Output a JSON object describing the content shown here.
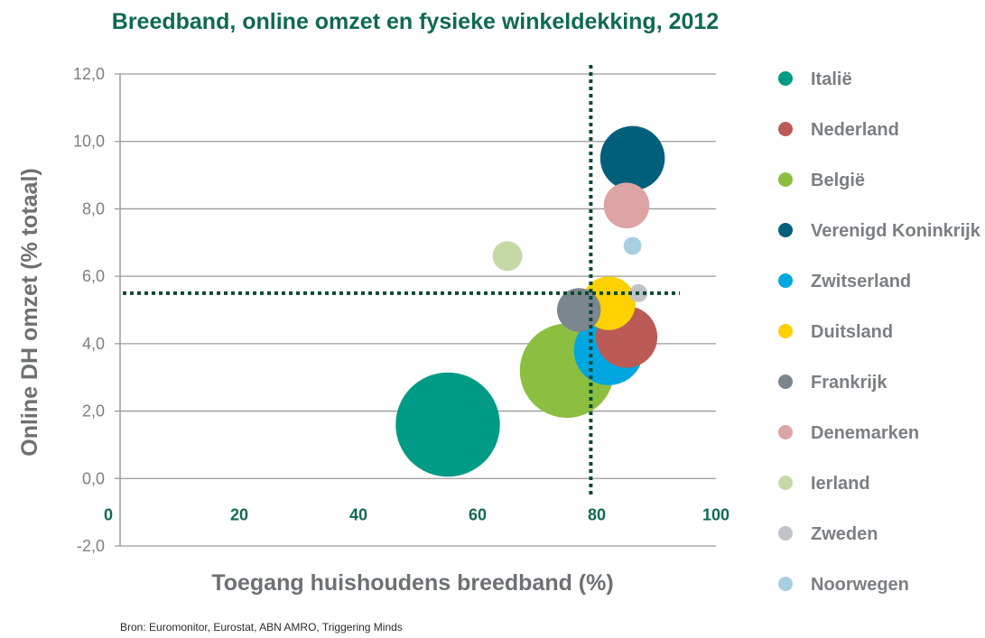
{
  "chart_data": {
    "type": "bubble",
    "title": "Breedband, online omzet en fysieke winkeldekking, 2012",
    "xlabel": "Toegang huishoudens breedband (%)",
    "ylabel": "Online DH omzet (% totaal)",
    "xlim": [
      0,
      100
    ],
    "ylim": [
      -2,
      12
    ],
    "x_ticks": [
      "0",
      "20",
      "40",
      "60",
      "80",
      "100"
    ],
    "y_ticks": [
      "-2,0",
      "0,0",
      "2,0",
      "4,0",
      "6,0",
      "8,0",
      "10,0",
      "12,0"
    ],
    "grid": "horizontal",
    "reference_lines": {
      "x": 79,
      "y": 5.5
    },
    "legend_position": "right",
    "source": "Bron: Euromonitor, Eurostat, ABN AMRO, Triggering Minds",
    "series": [
      {
        "name": "Italië",
        "x": 55,
        "y": 1.6,
        "size": 10.5,
        "color": "#009b84"
      },
      {
        "name": "Nederland",
        "x": 85,
        "y": 4.2,
        "size": 6.2,
        "color": "#bc5a55"
      },
      {
        "name": "België",
        "x": 75,
        "y": 3.2,
        "size": 9.5,
        "color": "#8cbf3f"
      },
      {
        "name": "Verenigd Koninkrijk",
        "x": 86,
        "y": 9.5,
        "size": 6.5,
        "color": "#005f7a"
      },
      {
        "name": "Zwitserland",
        "x": 82,
        "y": 3.8,
        "size": 7.0,
        "color": "#00a6e0"
      },
      {
        "name": "Duitsland",
        "x": 82,
        "y": 5.2,
        "size": 5.4,
        "color": "#ffd100"
      },
      {
        "name": "Frankrijk",
        "x": 77,
        "y": 5.0,
        "size": 4.4,
        "color": "#7c868f"
      },
      {
        "name": "Denemarken",
        "x": 85,
        "y": 8.1,
        "size": 4.6,
        "color": "#dca4a4"
      },
      {
        "name": "Ierland",
        "x": 65,
        "y": 6.6,
        "size": 3.0,
        "color": "#c5d9a6"
      },
      {
        "name": "Zweden",
        "x": 87,
        "y": 5.5,
        "size": 1.8,
        "color": "#bfc3c7"
      },
      {
        "name": "Noorwegen",
        "x": 86,
        "y": 6.9,
        "size": 1.8,
        "color": "#a6cfe0"
      }
    ]
  }
}
